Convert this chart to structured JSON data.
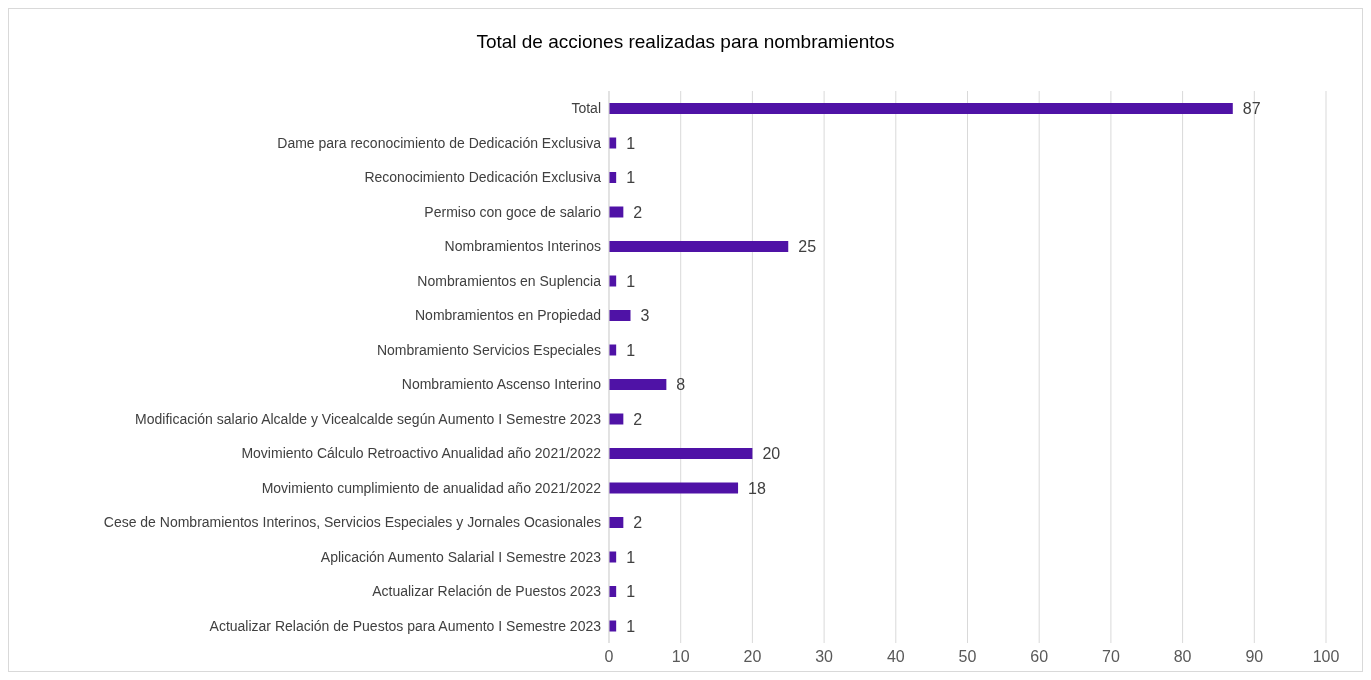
{
  "chart_data": {
    "type": "bar",
    "orientation": "horizontal",
    "title": "Total de acciones realizadas para nombramientos",
    "categories": [
      "Total",
      "Dame para reconocimiento de Dedicación Exclusiva",
      "Reconocimiento Dedicación Exclusiva",
      "Permiso con goce de salario",
      "Nombramientos Interinos",
      "Nombramientos en Suplencia",
      "Nombramientos en Propiedad",
      "Nombramiento Servicios Especiales",
      "Nombramiento Ascenso Interino",
      "Modificación salario Alcalde y Vicealcalde según Aumento I Semestre 2023",
      "Movimiento Cálculo Retroactivo Anualidad año 2021/2022",
      "Movimiento cumplimiento de anualidad año  2021/2022",
      "Cese de Nombramientos Interinos, Servicios Especiales y  Jornales Ocasionales",
      "Aplicación Aumento Salarial I Semestre 2023",
      "Actualizar Relación de Puestos 2023",
      "Actualizar Relación de Puestos  para Aumento I Semestre 2023"
    ],
    "values": [
      87,
      1,
      1,
      2,
      25,
      1,
      3,
      1,
      8,
      2,
      20,
      18,
      2,
      1,
      1,
      1
    ],
    "color": "#4f12a6",
    "xlim": [
      0,
      100
    ],
    "xticks": [
      0,
      10,
      20,
      30,
      40,
      50,
      60,
      70,
      80,
      90,
      100
    ],
    "grid": "x",
    "data_labels": true
  }
}
